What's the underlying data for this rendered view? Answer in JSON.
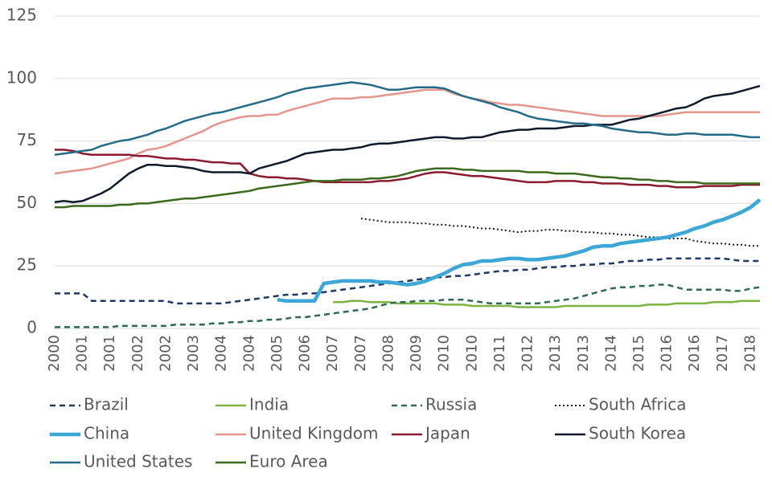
{
  "chart_data": {
    "type": "line",
    "categories": [
      "2000",
      null,
      null,
      "2001",
      null,
      null,
      "2001",
      null,
      null,
      "2002",
      null,
      null,
      "2002",
      null,
      null,
      "2003",
      null,
      null,
      "2004",
      null,
      null,
      "2004",
      null,
      null,
      "2005",
      null,
      null,
      "2006",
      null,
      null,
      "2007",
      null,
      null,
      "2007",
      null,
      null,
      "2008",
      null,
      null,
      "2009",
      null,
      null,
      "2010",
      null,
      null,
      "2010",
      null,
      null,
      "2011",
      null,
      null,
      "2012",
      null,
      null,
      "2013",
      null,
      null,
      "2013",
      null,
      null,
      "2014",
      null,
      null,
      "2015",
      null,
      null,
      "2016",
      null,
      null,
      "2016",
      null,
      null,
      "2017",
      null,
      null,
      "2018",
      null
    ],
    "ylim": [
      0,
      125
    ],
    "yticks": [
      0,
      25,
      50,
      75,
      100,
      125
    ],
    "grid": true,
    "legend": "bottom",
    "series": [
      {
        "name": "Brazil",
        "color": "#1f3864",
        "dash": "dashed",
        "width": 2.5,
        "values": [
          14,
          14,
          14,
          14,
          11,
          11,
          11,
          11,
          11,
          11,
          11,
          11,
          11,
          10,
          10,
          10,
          10,
          10,
          10,
          10.5,
          11,
          11.5,
          12,
          12.5,
          13,
          13.5,
          13.5,
          14,
          14,
          14.5,
          15,
          15.5,
          16,
          16.5,
          17,
          17.5,
          18,
          18.5,
          19,
          19.5,
          20,
          20.5,
          20.5,
          21,
          21,
          21.5,
          22,
          22.5,
          23,
          23,
          23.5,
          23.5,
          24,
          24.5,
          24.5,
          25,
          25,
          25.5,
          25.5,
          26,
          26,
          26.5,
          27,
          27,
          27.5,
          27.5,
          28,
          28,
          28,
          28,
          28,
          28,
          28,
          27.5,
          27,
          27,
          27
        ]
      },
      {
        "name": "India",
        "color": "#7cb342",
        "dash": "solid",
        "width": 2.5,
        "values": [
          null,
          null,
          null,
          null,
          null,
          null,
          null,
          null,
          null,
          null,
          null,
          null,
          null,
          null,
          null,
          null,
          null,
          null,
          null,
          null,
          null,
          null,
          null,
          null,
          null,
          null,
          null,
          null,
          null,
          null,
          10.5,
          10.5,
          11,
          11,
          10.5,
          10.5,
          10.5,
          10,
          10,
          10,
          10,
          10,
          9.5,
          9.5,
          9.5,
          9,
          9,
          9,
          9,
          9,
          8.5,
          8.5,
          8.5,
          8.5,
          8.5,
          9,
          9,
          9,
          9,
          9,
          9,
          9,
          9,
          9,
          9.5,
          9.5,
          9.5,
          10,
          10,
          10,
          10,
          10.5,
          10.5,
          10.5,
          11,
          11,
          11
        ]
      },
      {
        "name": "Russia",
        "color": "#2e6b4f",
        "dash": "dashed",
        "width": 2.5,
        "values": [
          0.5,
          0.5,
          0.5,
          0.5,
          0.5,
          0.5,
          0.5,
          1,
          1,
          1,
          1,
          1,
          1,
          1.5,
          1.5,
          1.5,
          1.5,
          2,
          2,
          2.5,
          2.5,
          3,
          3,
          3.5,
          3.5,
          4,
          4.5,
          4.5,
          5,
          5.5,
          6,
          6.5,
          7,
          7.5,
          8,
          9,
          10,
          10.5,
          10.5,
          11,
          11,
          11,
          11.5,
          11.5,
          11.5,
          11,
          10.5,
          10,
          10,
          10,
          10,
          10,
          10,
          10.5,
          11,
          11.5,
          12,
          13,
          14,
          15,
          16,
          16.5,
          16.5,
          17,
          17,
          17.5,
          17.5,
          16.5,
          15.5,
          15.5,
          15.5,
          15.5,
          15.5,
          15,
          15,
          16,
          16.5
        ]
      },
      {
        "name": "South Africa",
        "color": "#1a1a1a",
        "dash": "dotted",
        "width": 2,
        "values": [
          null,
          null,
          null,
          null,
          null,
          null,
          null,
          null,
          null,
          null,
          null,
          null,
          null,
          null,
          null,
          null,
          null,
          null,
          null,
          null,
          null,
          null,
          null,
          null,
          null,
          null,
          null,
          null,
          null,
          null,
          null,
          null,
          null,
          44,
          43.5,
          43,
          42.5,
          42.5,
          42.5,
          42,
          42,
          41.5,
          41.5,
          41,
          41,
          40.5,
          40,
          40,
          39.5,
          39,
          38.5,
          39,
          39,
          39.5,
          39.5,
          39,
          39,
          38.5,
          38.5,
          38,
          38,
          37.5,
          37.5,
          37,
          36.5,
          36.5,
          36,
          36,
          36,
          35,
          34.5,
          34,
          34,
          33.5,
          33.5,
          33,
          33
        ]
      },
      {
        "name": "China",
        "color": "#3ca6d6",
        "dash": "solid",
        "width": 4.5,
        "values": [
          null,
          null,
          null,
          null,
          null,
          null,
          null,
          null,
          null,
          null,
          null,
          null,
          null,
          null,
          null,
          null,
          null,
          null,
          null,
          null,
          null,
          null,
          null,
          null,
          11.5,
          11,
          11,
          11,
          11,
          18,
          18.5,
          19,
          19,
          19,
          19,
          18.5,
          18.5,
          18,
          17.5,
          18,
          19,
          20.5,
          22,
          24,
          25.5,
          26,
          27,
          27,
          27.5,
          28,
          28,
          27.5,
          27.5,
          28,
          28.5,
          29,
          30,
          31,
          32.5,
          33,
          33,
          34,
          34.5,
          35,
          35.5,
          36,
          36.5,
          37.5,
          38.5,
          40,
          41,
          42.5,
          43.5,
          45,
          46.5,
          48.5,
          51.5
        ]
      },
      {
        "name": "United Kingdom",
        "color": "#e3968c",
        "dash": "solid",
        "width": 2.5,
        "values": [
          62,
          62.5,
          63,
          63.5,
          64,
          65,
          66,
          67,
          68,
          70,
          71.5,
          72,
          73,
          74.5,
          76,
          77.5,
          79,
          81,
          82.5,
          83.5,
          84.5,
          85,
          85,
          85.5,
          85.5,
          87,
          88,
          89,
          90,
          91,
          92,
          92,
          92,
          92.5,
          92.5,
          93,
          93.5,
          94,
          94.5,
          95,
          95.5,
          95.5,
          95.5,
          94,
          93,
          92,
          91.5,
          90.5,
          90,
          89.5,
          89.5,
          89,
          88.5,
          88,
          87.5,
          87,
          86.5,
          86,
          85.5,
          85,
          85,
          85,
          85,
          85,
          85,
          85,
          85.5,
          86,
          86.5,
          86.5,
          86.5,
          86.5,
          86.5,
          86.5,
          86.5,
          86.5,
          86.5
        ]
      },
      {
        "name": "Japan",
        "color": "#8b1a2e",
        "dash": "solid",
        "width": 2.5,
        "values": [
          71.5,
          71.5,
          71,
          70,
          69.5,
          69.5,
          69.5,
          69.5,
          69.5,
          69,
          69,
          68.5,
          68,
          68,
          67.5,
          67.5,
          67,
          66.5,
          66.5,
          66,
          66,
          62,
          61,
          60.5,
          60.5,
          60,
          60,
          59.5,
          59,
          58.5,
          58.5,
          58.5,
          58.5,
          58.5,
          58.5,
          59,
          59,
          59.5,
          60,
          61,
          62,
          62.5,
          62.5,
          62,
          61.5,
          61,
          61,
          60.5,
          60,
          59.5,
          59,
          58.5,
          58.5,
          58.5,
          59,
          59,
          59,
          58.5,
          58.5,
          58,
          58,
          58,
          57.5,
          57.5,
          57.5,
          57,
          57,
          56.5,
          56.5,
          56.5,
          57,
          57,
          57,
          57,
          57.5,
          57.5,
          57.5
        ]
      },
      {
        "name": "South Korea",
        "color": "#0e1a2b",
        "dash": "solid",
        "width": 2.5,
        "values": [
          50.5,
          51,
          50.5,
          51,
          52.5,
          54,
          56,
          59,
          62,
          64,
          65.5,
          65.5,
          65,
          65,
          64.5,
          64,
          63,
          62.5,
          62.5,
          62.5,
          62.5,
          62,
          64,
          65,
          66,
          67,
          68.5,
          70,
          70.5,
          71,
          71.5,
          71.5,
          72,
          72.5,
          73.5,
          74,
          74,
          74.5,
          75,
          75.5,
          76,
          76.5,
          76.5,
          76,
          76,
          76.5,
          76.5,
          77.5,
          78.5,
          79,
          79.5,
          79.5,
          80,
          80,
          80,
          80.5,
          81,
          81,
          81.5,
          81.5,
          81.5,
          82.5,
          83.5,
          84,
          85,
          86,
          87,
          88,
          88.5,
          90,
          92,
          93,
          93.5,
          94,
          95,
          96,
          97
        ]
      },
      {
        "name": "United States",
        "color": "#246b8a",
        "dash": "solid",
        "width": 2.5,
        "values": [
          69.5,
          70,
          70.5,
          71,
          71.5,
          73,
          74,
          75,
          75.5,
          76.5,
          77.5,
          79,
          80,
          81.5,
          83,
          84,
          85,
          86,
          86.5,
          87.5,
          88.5,
          89.5,
          90.5,
          91.5,
          92.5,
          94,
          95,
          96,
          96.5,
          97,
          97.5,
          98,
          98.5,
          98,
          97.5,
          96.5,
          95.5,
          95.5,
          96,
          96.5,
          96.5,
          96.5,
          96,
          94.5,
          93,
          92,
          91,
          90,
          88.5,
          87.5,
          86.5,
          85,
          84,
          83.5,
          83,
          82.5,
          82,
          82,
          81.5,
          81,
          80,
          79.5,
          79,
          78.5,
          78.5,
          78,
          77.5,
          77.5,
          78,
          78,
          77.5,
          77.5,
          77.5,
          77.5,
          77,
          76.5,
          76.5
        ]
      },
      {
        "name": "Euro Area",
        "color": "#3b6a1c",
        "dash": "solid",
        "width": 2.5,
        "values": [
          48.5,
          48.5,
          49,
          49,
          49,
          49,
          49,
          49.5,
          49.5,
          50,
          50,
          50.5,
          51,
          51.5,
          52,
          52,
          52.5,
          53,
          53.5,
          54,
          54.5,
          55,
          56,
          56.5,
          57,
          57.5,
          58,
          58.5,
          59,
          59,
          59,
          59.5,
          59.5,
          59.5,
          60,
          60,
          60.5,
          61,
          62,
          63,
          63.5,
          64,
          64,
          64,
          63.5,
          63.5,
          63,
          63,
          63,
          63,
          63,
          62.5,
          62.5,
          62.5,
          62,
          62,
          62,
          61.5,
          61,
          60.5,
          60.5,
          60,
          60,
          59.5,
          59.5,
          59,
          59,
          58.5,
          58.5,
          58.5,
          58,
          58,
          58,
          58,
          58,
          58,
          58
        ]
      }
    ]
  }
}
